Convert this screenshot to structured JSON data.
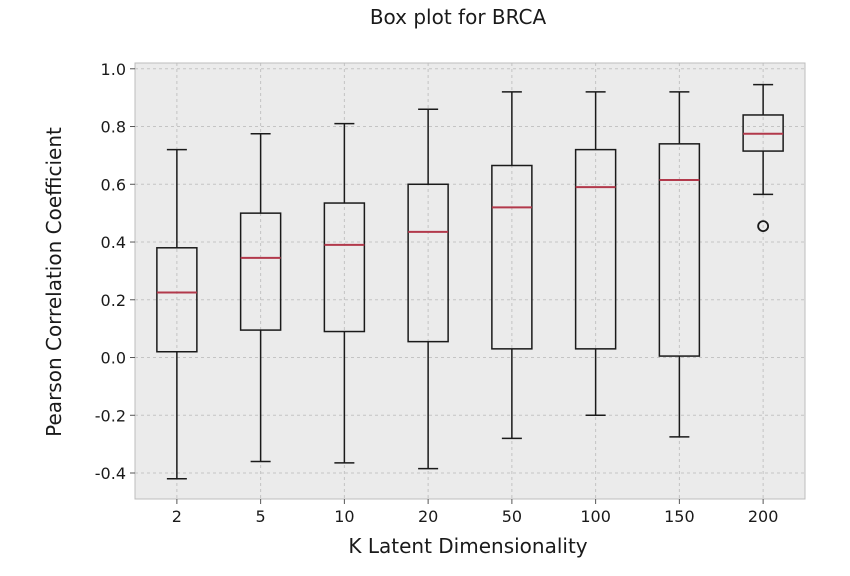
{
  "chart_data": {
    "type": "box",
    "title": "Box plot for BRCA",
    "xlabel": "K Latent Dimensionality",
    "ylabel": "Pearson Correlation Coefficient",
    "ylim": [
      -0.49,
      1.02
    ],
    "yticks": [
      -0.4,
      -0.2,
      0.0,
      0.2,
      0.4,
      0.6,
      0.8,
      1.0
    ],
    "ytick_labels": [
      "-0.4",
      "-0.2",
      "0.0",
      "0.2",
      "0.4",
      "0.6",
      "0.8",
      "1.0"
    ],
    "grid": true,
    "categories": [
      "2",
      "5",
      "10",
      "20",
      "50",
      "100",
      "150",
      "200"
    ],
    "boxes": [
      {
        "whisker_low": -0.42,
        "q1": 0.02,
        "median": 0.225,
        "q3": 0.38,
        "whisker_high": 0.72,
        "outliers": []
      },
      {
        "whisker_low": -0.36,
        "q1": 0.095,
        "median": 0.345,
        "q3": 0.5,
        "whisker_high": 0.775,
        "outliers": []
      },
      {
        "whisker_low": -0.365,
        "q1": 0.09,
        "median": 0.39,
        "q3": 0.535,
        "whisker_high": 0.81,
        "outliers": []
      },
      {
        "whisker_low": -0.385,
        "q1": 0.055,
        "median": 0.435,
        "q3": 0.6,
        "whisker_high": 0.86,
        "outliers": []
      },
      {
        "whisker_low": -0.28,
        "q1": 0.03,
        "median": 0.52,
        "q3": 0.665,
        "whisker_high": 0.92,
        "outliers": []
      },
      {
        "whisker_low": -0.2,
        "q1": 0.03,
        "median": 0.59,
        "q3": 0.72,
        "whisker_high": 0.92,
        "outliers": []
      },
      {
        "whisker_low": -0.275,
        "q1": 0.005,
        "median": 0.615,
        "q3": 0.74,
        "whisker_high": 0.92,
        "outliers": []
      },
      {
        "whisker_low": 0.565,
        "q1": 0.715,
        "median": 0.775,
        "q3": 0.84,
        "whisker_high": 0.945,
        "outliers": [
          0.455
        ]
      }
    ],
    "colors": {
      "background": "#ebebeb",
      "grid": "#c4c4c4",
      "frame": "#bcbcbc",
      "box": "#1a1a1a",
      "median": "#b2394b",
      "text": "#1a1a1a"
    }
  }
}
